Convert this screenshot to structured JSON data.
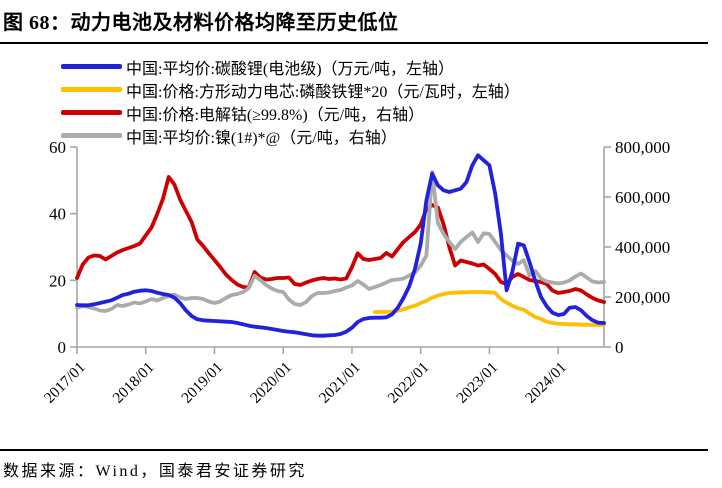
{
  "footer": {
    "source": "数据来源：Wind，国泰君安证券研究"
  },
  "chart_data": {
    "type": "line",
    "title": "图 68：动力电池及材料价格均降至历史低位",
    "x_interval": "monthly",
    "x_range": [
      "2017/01",
      "2024/09"
    ],
    "x_tick_labels": [
      "2017/01",
      "2018/01",
      "2019/01",
      "2020/01",
      "2021/01",
      "2022/01",
      "2023/01",
      "2024/01"
    ],
    "left_axis": {
      "min": 0,
      "max": 60,
      "ticks": [
        0,
        20,
        40,
        60
      ],
      "tick_labels": [
        "0",
        "20",
        "40",
        "60"
      ]
    },
    "right_axis": {
      "min": 0,
      "max": 800000,
      "ticks": [
        0,
        200000,
        400000,
        600000,
        800000
      ],
      "tick_labels": [
        "0",
        "200,000",
        "400,000",
        "600,000",
        "800,000"
      ]
    },
    "axis_color": "#a6a6a6",
    "grid": "off",
    "legend_position": "top-left",
    "series": [
      {
        "name": "中国:平均价:碳酸锂(电池级)（万元/吨，左轴）",
        "axis": "left",
        "color": "#2222dd",
        "values": [
          12.6,
          12.5,
          12.5,
          12.8,
          13.2,
          13.6,
          14.0,
          14.8,
          15.6,
          16.0,
          16.6,
          16.9,
          17.0,
          16.8,
          16.3,
          15.9,
          15.6,
          14.8,
          13.2,
          11.0,
          9.3,
          8.3,
          8.0,
          7.9,
          7.8,
          7.7,
          7.6,
          7.5,
          7.2,
          6.8,
          6.4,
          6.1,
          5.9,
          5.7,
          5.4,
          5.1,
          4.8,
          4.6,
          4.4,
          4.1,
          3.8,
          3.5,
          3.4,
          3.4,
          3.5,
          3.6,
          3.9,
          4.6,
          5.8,
          7.5,
          8.4,
          8.7,
          8.8,
          8.8,
          8.9,
          9.8,
          11.8,
          14.7,
          18.2,
          23.5,
          31.0,
          44.0,
          52.0,
          48.5,
          47.0,
          46.5,
          47.0,
          47.5,
          49.5,
          54.5,
          57.5,
          56.0,
          54.5,
          46.0,
          34.0,
          17.0,
          22.5,
          31.0,
          30.5,
          25.5,
          19.8,
          15.0,
          12.2,
          10.3,
          9.6,
          9.9,
          11.8,
          12.0,
          11.0,
          9.3,
          8.0,
          7.3,
          7.2
        ]
      },
      {
        "name": "中国:价格:方形动力电芯:磷酸铁锂*20（元/瓦时，左轴）",
        "axis": "left",
        "color": "#ffbf00",
        "values": [
          null,
          null,
          null,
          null,
          null,
          null,
          null,
          null,
          null,
          null,
          null,
          null,
          null,
          null,
          null,
          null,
          null,
          null,
          null,
          null,
          null,
          null,
          null,
          null,
          null,
          null,
          null,
          null,
          null,
          null,
          null,
          null,
          null,
          null,
          null,
          null,
          null,
          null,
          null,
          null,
          null,
          null,
          null,
          null,
          null,
          null,
          null,
          null,
          null,
          null,
          null,
          null,
          10.5,
          10.5,
          10.5,
          10.6,
          10.9,
          11.3,
          11.9,
          12.4,
          13.2,
          13.9,
          14.8,
          15.4,
          15.9,
          16.2,
          16.3,
          16.4,
          16.4,
          16.5,
          16.5,
          16.5,
          16.4,
          16.2,
          14.4,
          13.3,
          12.4,
          11.6,
          11.2,
          10.0,
          9.0,
          8.4,
          7.6,
          7.2,
          7.0,
          6.9,
          6.8,
          6.8,
          6.7,
          6.7,
          6.6,
          6.6,
          6.6
        ]
      },
      {
        "name": "中国:价格:电解钴(≥99.8%)（元/吨，右轴）",
        "axis": "right",
        "color": "#cc0000",
        "values": [
          276000,
          330000,
          358000,
          366000,
          364000,
          350000,
          364000,
          378000,
          388000,
          396000,
          404000,
          414000,
          446000,
          478000,
          532000,
          592000,
          680000,
          650000,
          590000,
          545000,
          500000,
          430000,
          405000,
          375000,
          348000,
          320000,
          290000,
          268000,
          250000,
          240000,
          238000,
          300000,
          278000,
          270000,
          272000,
          276000,
          276000,
          278000,
          252000,
          248000,
          258000,
          266000,
          272000,
          276000,
          272000,
          274000,
          270000,
          274000,
          320000,
          375000,
          352000,
          348000,
          352000,
          356000,
          376000,
          362000,
          392000,
          420000,
          440000,
          460000,
          490000,
          552000,
          568000,
          558000,
          490000,
          400000,
          326000,
          346000,
          340000,
          334000,
          326000,
          330000,
          312000,
          292000,
          260000,
          252000,
          280000,
          292000,
          280000,
          268000,
          264000,
          260000,
          252000,
          226000,
          216000,
          220000,
          224000,
          232000,
          226000,
          210000,
          196000,
          186000,
          180000
        ]
      },
      {
        "name": "中国:平均价:镍(1#)*@（元/吨，右轴）",
        "axis": "right",
        "color": "#ababab",
        "values": [
          156000,
          164000,
          160000,
          154000,
          146000,
          144000,
          152000,
          168000,
          164000,
          170000,
          178000,
          174000,
          182000,
          192000,
          186000,
          196000,
          204000,
          210000,
          198000,
          192000,
          196000,
          196000,
          192000,
          182000,
          176000,
          182000,
          196000,
          208000,
          212000,
          220000,
          236000,
          285000,
          268000,
          248000,
          234000,
          224000,
          220000,
          190000,
          172000,
          168000,
          180000,
          204000,
          216000,
          216000,
          218000,
          224000,
          228000,
          238000,
          246000,
          264000,
          250000,
          232000,
          240000,
          248000,
          258000,
          268000,
          270000,
          274000,
          286000,
          298000,
          326000,
          366000,
          700000,
          496000,
          452000,
          420000,
          392000,
          420000,
          440000,
          458000,
          420000,
          455000,
          452000,
          420000,
          388000,
          366000,
          346000,
          332000,
          348000,
          286000,
          304000,
          274000,
          262000,
          258000,
          254000,
          258000,
          266000,
          282000,
          294000,
          278000,
          262000,
          258000,
          260000
        ]
      }
    ]
  }
}
